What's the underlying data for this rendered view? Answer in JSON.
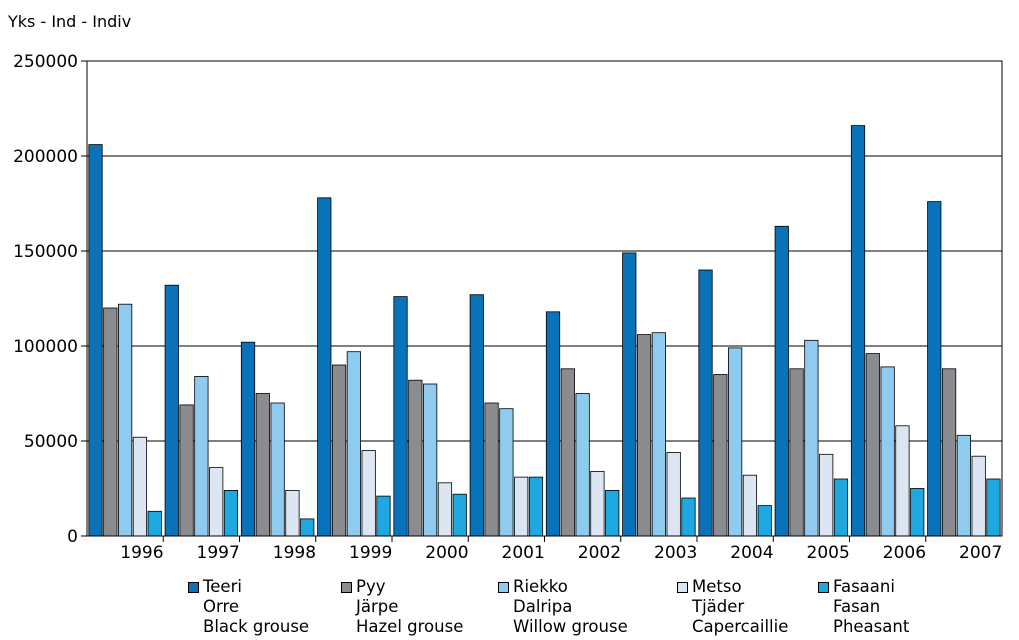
{
  "unit_label": "Yks - Ind - Indiv",
  "colors": {
    "teeri": "#0a72b8",
    "pyy": "#8a8c8f",
    "riekko": "#8fcbee",
    "metso": "#dce6f3",
    "fasaani": "#1fa8df"
  },
  "chart_data": {
    "type": "bar",
    "title": "",
    "xlabel": "",
    "ylabel": "Yks - Ind - Indiv",
    "ylim": [
      0,
      250000
    ],
    "yticks": [
      "0",
      "50000",
      "100000",
      "150000",
      "200000",
      "250000"
    ],
    "categories": [
      "1996",
      "1997",
      "1998",
      "1999",
      "2000",
      "2001",
      "2002",
      "2003",
      "2004",
      "2005",
      "2006",
      "2007"
    ],
    "grid": true,
    "legend_position": "bottom",
    "series": [
      {
        "name": "Teeri Orre Black grouse",
        "lines": [
          "Teeri",
          "Orre",
          "Black grouse"
        ],
        "color_key": "teeri",
        "values": [
          206000,
          132000,
          102000,
          178000,
          126000,
          127000,
          118000,
          149000,
          140000,
          163000,
          216000,
          176000
        ]
      },
      {
        "name": "Pyy Järpe Hazel grouse",
        "lines": [
          "Pyy",
          "Järpe",
          "Hazel grouse"
        ],
        "color_key": "pyy",
        "values": [
          120000,
          69000,
          75000,
          90000,
          82000,
          70000,
          88000,
          106000,
          85000,
          88000,
          96000,
          88000
        ]
      },
      {
        "name": "Riekko Dalripa Willow grouse",
        "lines": [
          "Riekko",
          "Dalripa",
          "Willow grouse"
        ],
        "color_key": "riekko",
        "values": [
          122000,
          84000,
          70000,
          97000,
          80000,
          67000,
          75000,
          107000,
          99000,
          103000,
          89000,
          53000
        ]
      },
      {
        "name": "Metso Tjäder Capercaillie",
        "lines": [
          "Metso",
          "Tjäder",
          "Capercaillie"
        ],
        "color_key": "metso",
        "values": [
          52000,
          36000,
          24000,
          45000,
          28000,
          31000,
          34000,
          44000,
          32000,
          43000,
          58000,
          42000
        ]
      },
      {
        "name": "Fasaani Fasan Pheasant",
        "lines": [
          "Fasaani",
          "Fasan",
          "Pheasant"
        ],
        "color_key": "fasaani",
        "values": [
          13000,
          24000,
          9000,
          21000,
          22000,
          31000,
          24000,
          20000,
          16000,
          30000,
          25000,
          30000
        ]
      }
    ]
  }
}
